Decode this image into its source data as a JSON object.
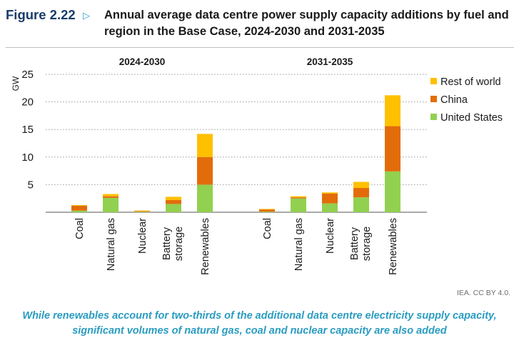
{
  "figure": {
    "label": "Figure 2.22",
    "title": "Annual average data centre power supply capacity additions by fuel and region in the Base Case, 2024-2030 and 2031-2035",
    "credit": "IEA. CC BY 4.0.",
    "caption": "While renewables account for two-thirds of the additional data centre electricity supply capacity, significant volumes of natural gas, coal and nuclear capacity are also added"
  },
  "chart_data": {
    "type": "bar",
    "stacked": true,
    "ylabel": "GW",
    "ylim": [
      0,
      25
    ],
    "yticks": [
      5,
      10,
      15,
      20,
      25
    ],
    "grid": true,
    "legend_position": "right",
    "categories": [
      "Coal",
      "Natural gas",
      "Nuclear",
      "Battery storage",
      "Renewables"
    ],
    "panels": [
      "2024-2030",
      "2031-2035"
    ],
    "series": [
      {
        "name": "United States",
        "color": "#92d050",
        "values": {
          "2024-2030": [
            0.3,
            2.6,
            0.1,
            1.5,
            5.0
          ],
          "2031-2035": [
            0.1,
            2.5,
            1.6,
            2.7,
            7.4
          ]
        }
      },
      {
        "name": "China",
        "color": "#e36c0a",
        "values": {
          "2024-2030": [
            0.9,
            0.3,
            0.1,
            0.7,
            5.0
          ],
          "2031-2035": [
            0.4,
            0.2,
            1.8,
            1.7,
            8.2
          ]
        }
      },
      {
        "name": "Rest of world",
        "color": "#ffc000",
        "values": {
          "2024-2030": [
            0.1,
            0.4,
            0.1,
            0.6,
            4.2
          ],
          "2031-2035": [
            0.1,
            0.2,
            0.2,
            1.1,
            5.6
          ]
        }
      }
    ],
    "legend_order": [
      "Rest of world",
      "China",
      "United States"
    ]
  }
}
